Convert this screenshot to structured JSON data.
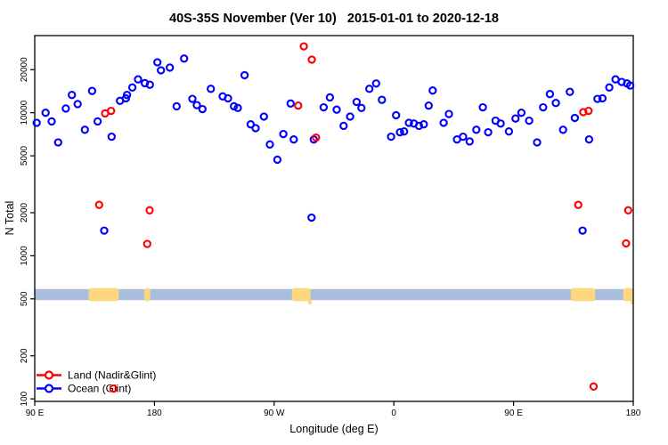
{
  "title": "40S-35S November (Ver 10)   2015-01-01 to 2020-12-18",
  "chart_data": {
    "type": "scatter",
    "title": "40S-35S November (Ver 10)   2015-01-01 to 2020-12-18",
    "xlabel": "Longitude (deg E)",
    "ylabel": "N Total",
    "grid": false,
    "x_axis": {
      "min": 90,
      "max": 540,
      "ticks": [
        {
          "value": 90,
          "label": "90 E"
        },
        {
          "value": 180,
          "label": "180"
        },
        {
          "value": 270,
          "label": "90 W"
        },
        {
          "value": 360,
          "label": "0"
        },
        {
          "value": 450,
          "label": "90 E"
        },
        {
          "value": 540,
          "label": "180"
        }
      ]
    },
    "y_axis": {
      "scale": "log",
      "min": 96,
      "max": 34600,
      "ticks": [
        {
          "value": 100,
          "label": "100"
        },
        {
          "value": 200,
          "label": "200"
        },
        {
          "value": 500,
          "label": "500"
        },
        {
          "value": 1000,
          "label": "1000"
        },
        {
          "value": 2000,
          "label": "2000"
        },
        {
          "value": 5000,
          "label": "5000"
        },
        {
          "value": 10000,
          "label": "10000"
        },
        {
          "value": 20000,
          "label": "20000"
        }
      ]
    },
    "legend": {
      "position": "bottom-left",
      "items": [
        {
          "label": "Land (Nadir&Glint)",
          "color": "#ff0000"
        },
        {
          "label": "Ocean (Glint)",
          "color": "#0000ff"
        }
      ]
    },
    "ocean_band": {
      "n_min": 490,
      "n_max": 585,
      "color": "#a9bddc"
    },
    "land_color": "#fcd77e",
    "land_patches": [
      {
        "lon_min": 130.5,
        "lon_max": 153.2
      },
      {
        "lon_min": 172.2,
        "lon_max": 176.8
      },
      {
        "lon_min": 283.4,
        "lon_max": 297.4
      },
      {
        "lon_min": 493.0,
        "lon_max": 511.4
      },
      {
        "lon_min": 532.4,
        "lon_max": 540.0
      }
    ],
    "land_tails": [
      {
        "lon": 296.9
      },
      {
        "lon": 539.3
      }
    ],
    "series": [
      {
        "name": "Ocean (Glint)",
        "color": "#0000ff",
        "points": [
          [
            91.5,
            8500
          ],
          [
            98.2,
            10000
          ],
          [
            102.7,
            8700
          ],
          [
            107.6,
            6200
          ],
          [
            113.4,
            10700
          ],
          [
            117.9,
            13300
          ],
          [
            122.3,
            11500
          ],
          [
            127.7,
            7600
          ],
          [
            133.1,
            14200
          ],
          [
            137.3,
            8700
          ],
          [
            142.2,
            1500
          ],
          [
            147.8,
            6800
          ],
          [
            154.1,
            12100
          ],
          [
            158.5,
            12600
          ],
          [
            159.4,
            13300
          ],
          [
            163.4,
            15000
          ],
          [
            167.7,
            17100
          ],
          [
            172.8,
            16100
          ],
          [
            176.6,
            15700
          ],
          [
            182.2,
            22500
          ],
          [
            184.9,
            19800
          ],
          [
            191.6,
            20700
          ],
          [
            196.7,
            11100
          ],
          [
            202.3,
            23900
          ],
          [
            208.5,
            12500
          ],
          [
            211.9,
            11300
          ],
          [
            216.1,
            10600
          ],
          [
            222.4,
            14700
          ],
          [
            231.3,
            13000
          ],
          [
            235.3,
            12600
          ],
          [
            239.8,
            11100
          ],
          [
            242.7,
            10800
          ],
          [
            247.8,
            18300
          ],
          [
            252.3,
            8300
          ],
          [
            256.1,
            7800
          ],
          [
            262.3,
            9400
          ],
          [
            266.8,
            6000
          ],
          [
            272.4,
            4700
          ],
          [
            276.9,
            7100
          ],
          [
            282.4,
            11600
          ],
          [
            284.7,
            6500
          ],
          [
            298.1,
            1850
          ],
          [
            299.8,
            6500
          ],
          [
            307.2,
            10900
          ],
          [
            311.9,
            12800
          ],
          [
            317.0,
            10500
          ],
          [
            322.2,
            8100
          ],
          [
            327.1,
            9400
          ],
          [
            332.0,
            11900
          ],
          [
            335.6,
            10800
          ],
          [
            341.6,
            14700
          ],
          [
            346.7,
            16000
          ],
          [
            351.0,
            12300
          ],
          [
            357.9,
            6800
          ],
          [
            361.7,
            9600
          ],
          [
            364.6,
            7300
          ],
          [
            367.7,
            7400
          ],
          [
            371.3,
            8500
          ],
          [
            375.1,
            8400
          ],
          [
            378.9,
            8100
          ],
          [
            382.5,
            8300
          ],
          [
            386.2,
            11200
          ],
          [
            389.2,
            14300
          ],
          [
            397.4,
            8500
          ],
          [
            401.4,
            9800
          ],
          [
            407.5,
            6500
          ],
          [
            412.0,
            6800
          ],
          [
            417.0,
            6300
          ],
          [
            422.0,
            7600
          ],
          [
            426.9,
            10900
          ],
          [
            430.9,
            7300
          ],
          [
            436.5,
            8800
          ],
          [
            440.3,
            8400
          ],
          [
            446.5,
            7400
          ],
          [
            451.5,
            9100
          ],
          [
            455.9,
            10000
          ],
          [
            461.7,
            8800
          ],
          [
            467.7,
            6200
          ],
          [
            472.2,
            10900
          ],
          [
            477.3,
            13500
          ],
          [
            481.8,
            11700
          ],
          [
            487.2,
            7600
          ],
          [
            492.3,
            14000
          ],
          [
            496.1,
            9200
          ],
          [
            501.9,
            1500
          ],
          [
            506.8,
            6500
          ],
          [
            513.1,
            12500
          ],
          [
            516.8,
            12600
          ],
          [
            522.0,
            15000
          ],
          [
            526.7,
            17100
          ],
          [
            531.3,
            16400
          ],
          [
            535.3,
            16000
          ],
          [
            537.7,
            15500
          ]
        ]
      },
      {
        "name": "Land (Nadir&Glint)",
        "color": "#ff0000",
        "points": [
          [
            142.9,
            9900
          ],
          [
            147.4,
            10300
          ],
          [
            288.1,
            11200
          ],
          [
            292.3,
            29100
          ],
          [
            298.3,
            23500
          ],
          [
            301.5,
            6700
          ],
          [
            502.4,
            10100
          ],
          [
            506.4,
            10300
          ],
          [
            138.4,
            2270
          ],
          [
            176.4,
            2080
          ],
          [
            174.6,
            1210
          ],
          [
            498.6,
            2270
          ],
          [
            536.2,
            2080
          ],
          [
            534.6,
            1220
          ],
          [
            149.2,
            118
          ],
          [
            510.2,
            122
          ]
        ]
      }
    ]
  }
}
